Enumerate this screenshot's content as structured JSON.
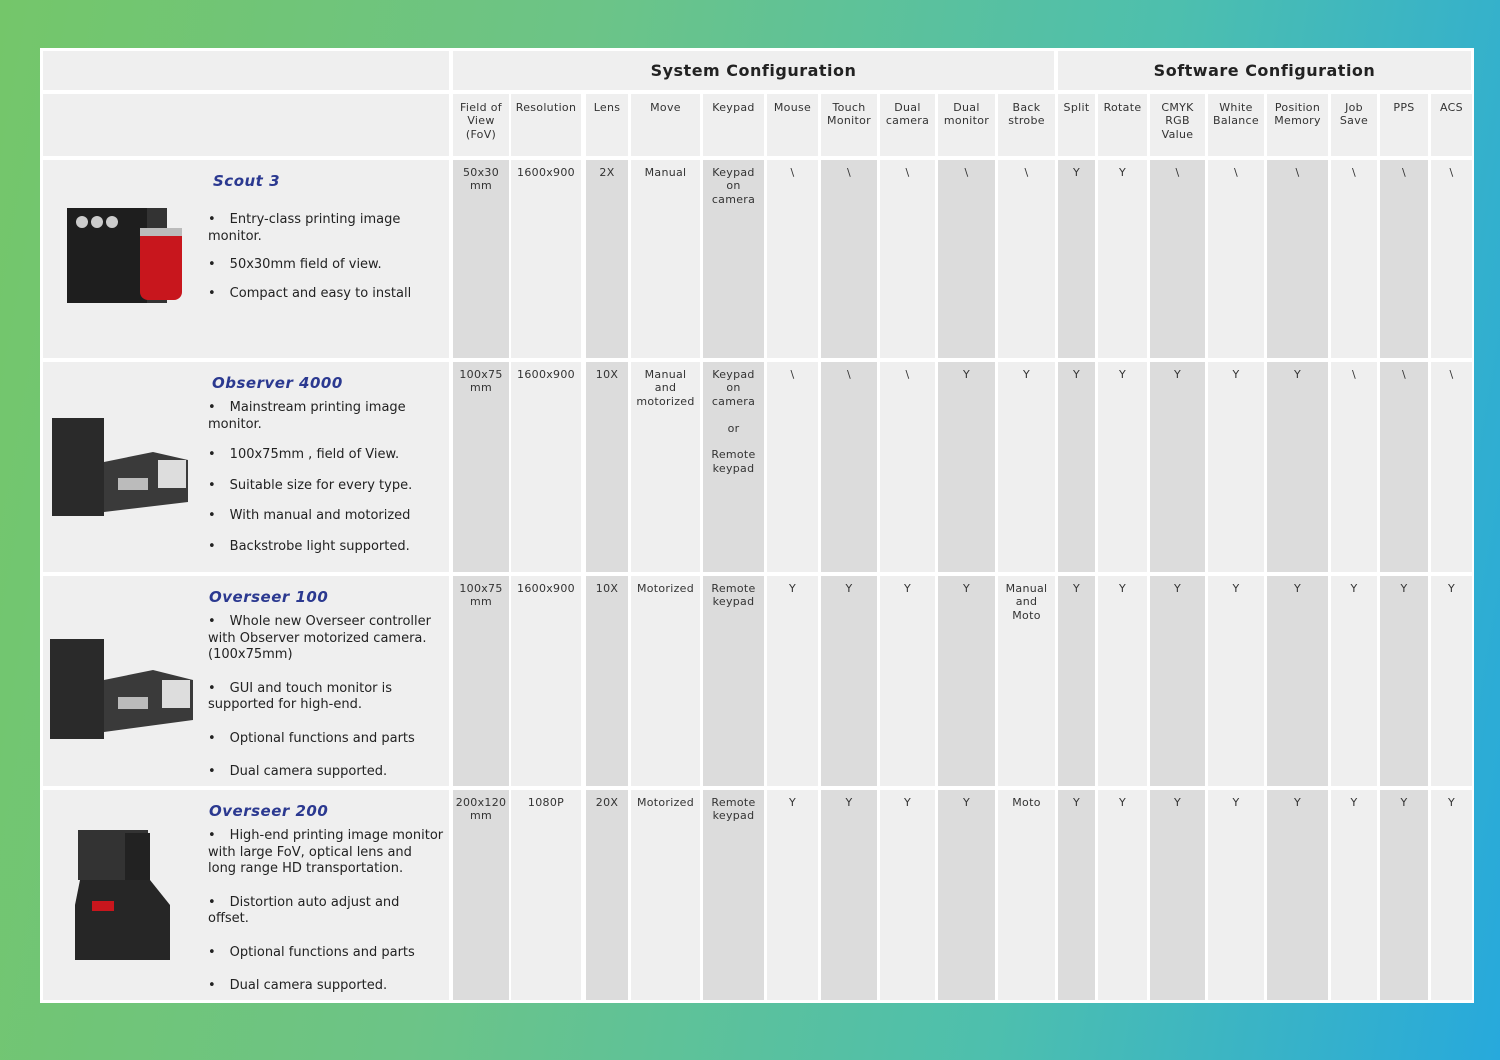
{
  "header": {
    "system": "System Configuration",
    "software": "Software Configuration"
  },
  "columns": [
    "Field of\nView\n(FoV)",
    "Resolution",
    "Lens",
    "Move",
    "Keypad",
    "Mouse",
    "Touch\nMonitor",
    "Dual\ncamera",
    "Dual\nmonitor",
    "Back\nstrobe",
    "Split",
    "Rotate",
    "CMYK\nRGB\nValue",
    "White\nBalance",
    "Position\nMemory",
    "Job\nSave",
    "PPS",
    "ACS"
  ],
  "rows": [
    {
      "name": "Scout 3",
      "bullets": [
        "Entry-class printing image monitor.",
        "50x30mm field of view.",
        "Compact and easy to install"
      ],
      "cells": [
        "50x30\nmm",
        "1600x900",
        "2X",
        "Manual",
        "Keypad\non\ncamera",
        "\\",
        "\\",
        "\\",
        "\\",
        "\\",
        "Y",
        "Y",
        "\\",
        "\\",
        "\\",
        "\\",
        "\\",
        "\\"
      ]
    },
    {
      "name": "Observer 4000",
      "bullets": [
        "Mainstream printing image monitor.",
        "100x75mm , field of View.",
        "Suitable size for every type.",
        "With manual and motorized",
        "Backstrobe light supported."
      ],
      "cells": [
        "100x75\nmm",
        "1600x900",
        "10X",
        "Manual\nand\nmotorized",
        "Keypad\non\ncamera\n\nor\n\nRemote\nkeypad",
        "\\",
        "\\",
        "\\",
        "Y",
        "Y",
        "Y",
        "Y",
        "Y",
        "Y",
        "Y",
        "\\",
        "\\",
        "\\"
      ]
    },
    {
      "name": "Overseer 100",
      "bullets": [
        "Whole new Overseer controller with Observer motorized camera. (100x75mm)",
        "GUI and touch monitor is supported for high-end.",
        "Optional functions and parts",
        "Dual camera supported."
      ],
      "cells": [
        "100x75\nmm",
        "1600x900",
        "10X",
        "Motorized",
        "Remote\nkeypad",
        "Y",
        "Y",
        "Y",
        "Y",
        "Manual\nand\nMoto",
        "Y",
        "Y",
        "Y",
        "Y",
        "Y",
        "Y",
        "Y",
        "Y"
      ]
    },
    {
      "name": "Overseer 200",
      "bullets": [
        "High-end printing image monitor with large FoV, optical lens and long range HD transportation.",
        "Distortion auto adjust and offset.",
        "Optional functions and parts",
        "Dual camera supported."
      ],
      "cells": [
        "200x120\nmm",
        "1080P",
        "20X",
        "Motorized",
        "Remote\nkeypad",
        "Y",
        "Y",
        "Y",
        "Y",
        "Moto",
        "Y",
        "Y",
        "Y",
        "Y",
        "Y",
        "Y",
        "Y",
        "Y"
      ]
    }
  ]
}
